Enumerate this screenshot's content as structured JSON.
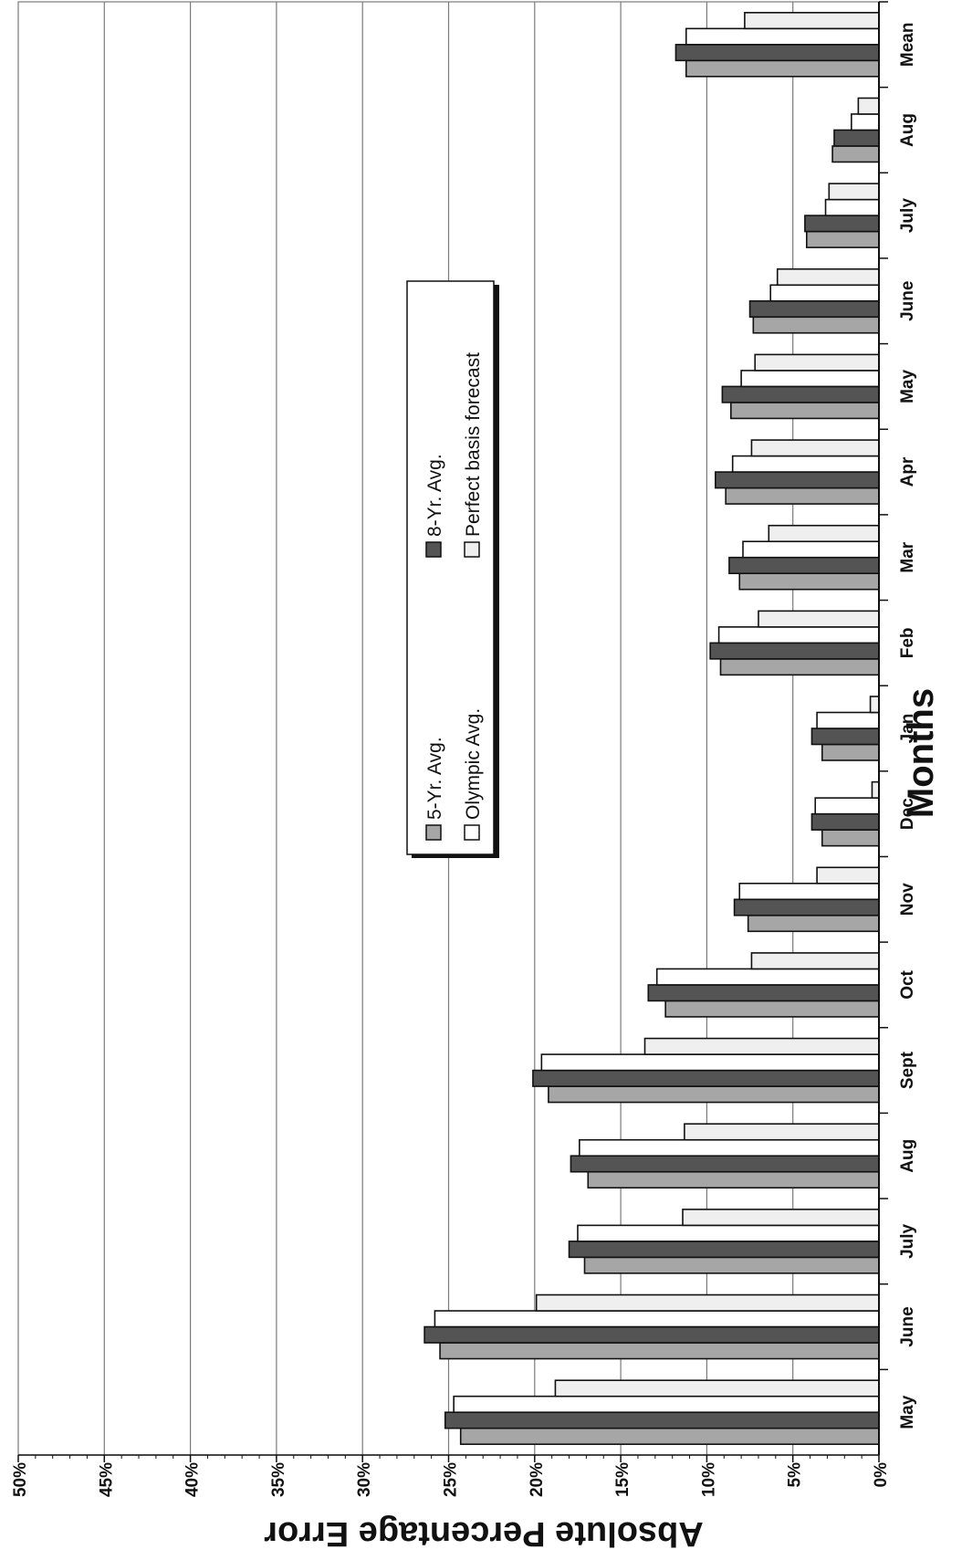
{
  "chart_data": {
    "type": "bar",
    "orientation": "rotated-90-clockwise",
    "title": "",
    "xlabel": "Months",
    "ylabel": "Absolute Percentage Error",
    "ylim": [
      0,
      50
    ],
    "yticks": [
      "0%",
      "5%",
      "10%",
      "15%",
      "20%",
      "25%",
      "30%",
      "35%",
      "40%",
      "45%",
      "50%"
    ],
    "grid": true,
    "legend_position": "upper-middle",
    "categories": [
      "May",
      "June",
      "July",
      "Aug",
      "Sept",
      "Oct",
      "Nov",
      "Dec",
      "Jan",
      "Feb",
      "Mar",
      "Apr",
      "May",
      "June",
      "July",
      "Aug",
      "Mean"
    ],
    "series": [
      {
        "name": "5-Yr. Avg.",
        "color": "#a6a6a6",
        "values": [
          24.3,
          25.5,
          17.1,
          16.9,
          19.2,
          12.4,
          7.6,
          3.3,
          3.3,
          9.2,
          8.1,
          8.9,
          8.6,
          7.3,
          4.2,
          2.7,
          11.2
        ]
      },
      {
        "name": "8-Yr. Avg.",
        "color": "#545454",
        "values": [
          25.2,
          26.4,
          18.0,
          17.9,
          20.1,
          13.4,
          8.4,
          3.9,
          3.9,
          9.8,
          8.7,
          9.5,
          9.1,
          7.5,
          4.3,
          2.6,
          11.8
        ]
      },
      {
        "name": "Olympic Avg.",
        "color": "#ffffff",
        "values": [
          24.7,
          25.8,
          17.5,
          17.4,
          19.6,
          12.9,
          8.1,
          3.7,
          3.6,
          9.3,
          7.9,
          8.5,
          8.0,
          6.3,
          3.1,
          1.6,
          11.2
        ]
      },
      {
        "name": "Perfect basis forecast",
        "color": "#efefef",
        "values": [
          18.8,
          19.9,
          11.4,
          11.3,
          13.6,
          7.4,
          3.6,
          0.4,
          0.5,
          7.0,
          6.4,
          7.4,
          7.2,
          5.9,
          2.9,
          1.2,
          7.8
        ]
      }
    ]
  },
  "colors": {
    "grid": "#7a7a7a",
    "bar_stroke": "#111111"
  }
}
